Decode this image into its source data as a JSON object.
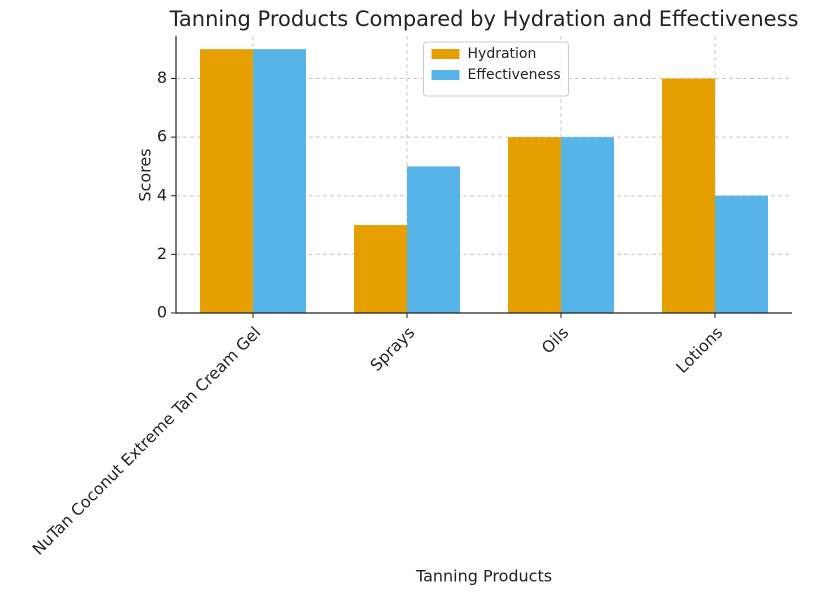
{
  "chart_data": {
    "type": "bar",
    "title": "Tanning Products Compared by Hydration and Effectiveness",
    "xlabel": "Tanning Products",
    "ylabel": "Scores",
    "categories": [
      "NuTan Coconut Extreme Tan Cream Gel",
      "Sprays",
      "Oils",
      "Lotions"
    ],
    "series": [
      {
        "name": "Hydration",
        "color": "#E69F00",
        "values": [
          9,
          3,
          6,
          8
        ]
      },
      {
        "name": "Effectiveness",
        "color": "#56B4E9",
        "values": [
          9,
          5,
          6,
          4
        ]
      }
    ],
    "ylim": [
      0,
      9.45
    ],
    "yticks": [
      0,
      2,
      4,
      6,
      8
    ],
    "grid": true,
    "legend": "upper center"
  }
}
